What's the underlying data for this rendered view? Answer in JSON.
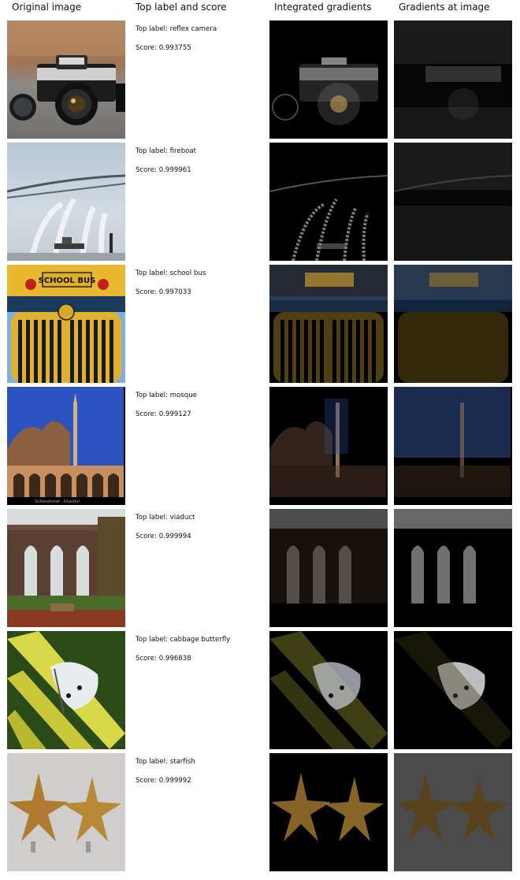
{
  "headers": {
    "original": "Original image",
    "label_score": "Top label and score",
    "integrated": "Integrated gradients",
    "gradients": "Gradients at image"
  },
  "rows": [
    {
      "label": "Top label: reflex camera",
      "score": "Score: 0.993755",
      "subject": "reflex-camera"
    },
    {
      "label": "Top label: fireboat",
      "score": "Score: 0.999961",
      "subject": "fireboat"
    },
    {
      "label": "Top label: school bus",
      "score": "Score: 0.997033",
      "subject": "school-bus"
    },
    {
      "label": "Top label: mosque",
      "score": "Score: 0.999127",
      "subject": "mosque"
    },
    {
      "label": "Top label: viaduct",
      "score": "Score: 0.999994",
      "subject": "viaduct"
    },
    {
      "label": "Top label: cabbage butterfly",
      "score": "Score: 0.996838",
      "subject": "cabbage-butterfly"
    },
    {
      "label": "Top label: starfish",
      "score": "Score: 0.999992",
      "subject": "starfish"
    }
  ],
  "images": {
    "school_bus_sign": "SCHOOL BUS",
    "mosque_caption": "Sultanahmet · İstanbul"
  },
  "colors": {
    "background": "#ffffff",
    "heatmap_background": "#000000"
  }
}
